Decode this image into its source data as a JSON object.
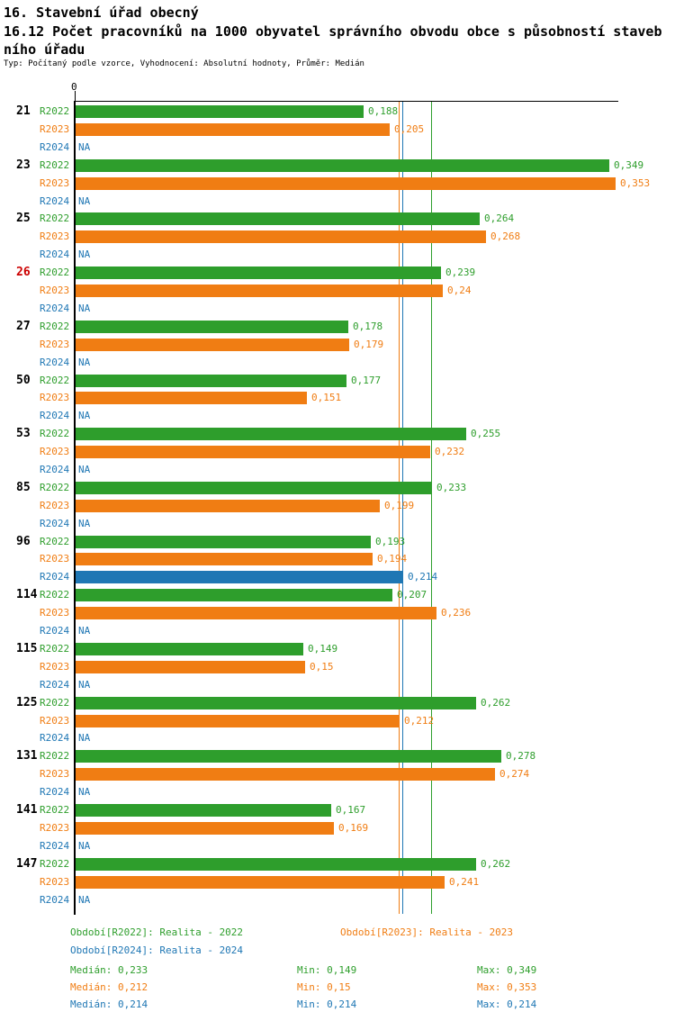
{
  "header": {
    "title": "16. Stavební úřad obecný",
    "subtitle_line1": "16.12 Počet pracovníků na 1000 obyvatel správního obvodu obce s působností staveb",
    "subtitle_line2": "ního úřadu",
    "meta": "Typ: Počítaný podle vzorce, Vyhodnocení: Absolutní hodnoty, Průměr: Medián"
  },
  "chart_data": {
    "type": "bar",
    "orientation": "horizontal",
    "x_axis": {
      "zero_label": "0",
      "min": 0,
      "max_value_shown": 0.353
    },
    "series": [
      "R2022",
      "R2023",
      "R2024"
    ],
    "colors": {
      "R2022": "#2e9e2c",
      "R2023": "#f07d13",
      "R2024": "#1f77b4",
      "highlight_id": "#cc0000",
      "axis": "#000000"
    },
    "groups": [
      {
        "id": "21",
        "highlight": false,
        "values": [
          0.188,
          0.205,
          null
        ],
        "value_labels": [
          "0,188",
          "0,205",
          "NA"
        ]
      },
      {
        "id": "23",
        "highlight": false,
        "values": [
          0.349,
          0.353,
          null
        ],
        "value_labels": [
          "0,349",
          "0,353",
          "NA"
        ]
      },
      {
        "id": "25",
        "highlight": false,
        "values": [
          0.264,
          0.268,
          null
        ],
        "value_labels": [
          "0,264",
          "0,268",
          "NA"
        ]
      },
      {
        "id": "26",
        "highlight": true,
        "values": [
          0.239,
          0.24,
          null
        ],
        "value_labels": [
          "0,239",
          "0,24",
          "NA"
        ]
      },
      {
        "id": "27",
        "highlight": false,
        "values": [
          0.178,
          0.179,
          null
        ],
        "value_labels": [
          "0,178",
          "0,179",
          "NA"
        ]
      },
      {
        "id": "50",
        "highlight": false,
        "values": [
          0.177,
          0.151,
          null
        ],
        "value_labels": [
          "0,177",
          "0,151",
          "NA"
        ]
      },
      {
        "id": "53",
        "highlight": false,
        "values": [
          0.255,
          0.232,
          null
        ],
        "value_labels": [
          "0,255",
          "0,232",
          "NA"
        ]
      },
      {
        "id": "85",
        "highlight": false,
        "values": [
          0.233,
          0.199,
          null
        ],
        "value_labels": [
          "0,233",
          "0,199",
          "NA"
        ]
      },
      {
        "id": "96",
        "highlight": false,
        "values": [
          0.193,
          0.194,
          0.214
        ],
        "value_labels": [
          "0,193",
          "0,194",
          "0,214"
        ]
      },
      {
        "id": "114",
        "highlight": false,
        "values": [
          0.207,
          0.236,
          null
        ],
        "value_labels": [
          "0,207",
          "0,236",
          "NA"
        ]
      },
      {
        "id": "115",
        "highlight": false,
        "values": [
          0.149,
          0.15,
          null
        ],
        "value_labels": [
          "0,149",
          "0,15",
          "NA"
        ]
      },
      {
        "id": "125",
        "highlight": false,
        "values": [
          0.262,
          0.212,
          null
        ],
        "value_labels": [
          "0,262",
          "0,212",
          "NA"
        ]
      },
      {
        "id": "131",
        "highlight": false,
        "values": [
          0.278,
          0.274,
          null
        ],
        "value_labels": [
          "0,278",
          "0,274",
          "NA"
        ]
      },
      {
        "id": "141",
        "highlight": false,
        "values": [
          0.167,
          0.169,
          null
        ],
        "value_labels": [
          "0,167",
          "0,169",
          "NA"
        ]
      },
      {
        "id": "147",
        "highlight": false,
        "values": [
          0.262,
          0.241,
          null
        ],
        "value_labels": [
          "0,262",
          "0,241",
          "NA"
        ]
      }
    ],
    "median_lines": [
      {
        "series": "R2022",
        "value": 0.233
      },
      {
        "series": "R2023",
        "value": 0.212
      },
      {
        "series": "R2024",
        "value": 0.214
      }
    ]
  },
  "legend": {
    "r2022": "Období[R2022]: Realita - 2022",
    "r2023": "Období[R2023]: Realita - 2023",
    "r2024": "Období[R2024]: Realita - 2024"
  },
  "stats": {
    "r2022": {
      "median": "Medián: 0,233",
      "min": "Min: 0,149",
      "max": "Max: 0,349"
    },
    "r2023": {
      "median": "Medián: 0,212",
      "min": "Min: 0,15",
      "max": "Max: 0,353"
    },
    "r2024": {
      "median": "Medián: 0,214",
      "min": "Min: 0,214",
      "max": "Max: 0,214"
    }
  }
}
